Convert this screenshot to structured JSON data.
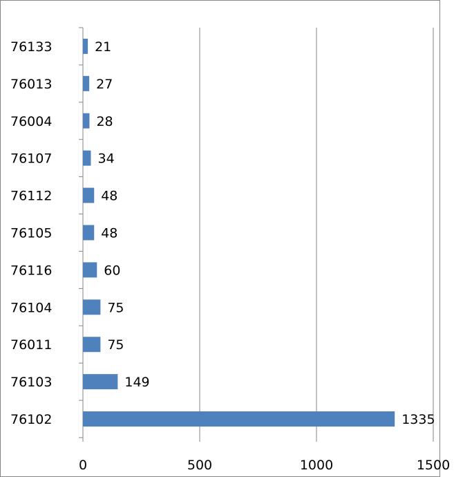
{
  "chart_data": {
    "type": "bar",
    "orientation": "horizontal",
    "categories": [
      "76102",
      "76103",
      "76011",
      "76104",
      "76116",
      "76105",
      "76112",
      "76107",
      "76004",
      "76013",
      "76133"
    ],
    "series": [
      {
        "values": [
          1335,
          149,
          75,
          75,
          60,
          48,
          48,
          34,
          28,
          27,
          21
        ]
      }
    ],
    "data_labels": [
      "1335",
      "149",
      "75",
      "75",
      "60",
      "48",
      "48",
      "34",
      "28",
      "27",
      "21"
    ],
    "x_ticks": [
      "0",
      "500",
      "1000",
      "1500"
    ],
    "xlim": [
      0,
      1500
    ],
    "title": "",
    "xlabel": "",
    "ylabel": "",
    "grid": "vertical",
    "legend": "none"
  },
  "colors": {
    "bar": "#4f81bd",
    "grid": "#868686",
    "axis": "#868686",
    "frame": "#868686",
    "text": "#000000"
  }
}
